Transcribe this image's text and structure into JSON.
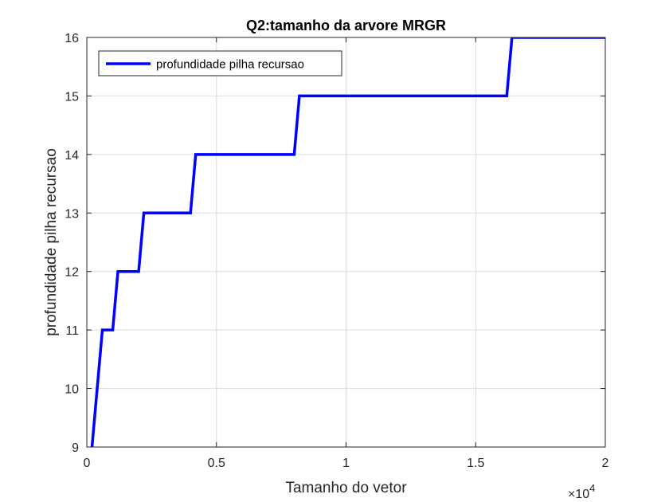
{
  "chart_data": {
    "type": "line",
    "title": "Q2:tamanho da arvore MRGR",
    "xlabel": "Tamanho do vetor",
    "ylabel": "profundidade pilha recursao",
    "x_multiplier_label": "×10",
    "x_multiplier_exponent": "4",
    "xlim": [
      0,
      20000
    ],
    "ylim": [
      9,
      16
    ],
    "x_ticks": [
      0,
      5000,
      10000,
      15000,
      20000
    ],
    "x_tick_labels": [
      "0",
      "0.5",
      "1",
      "1.5",
      "2"
    ],
    "y_ticks": [
      9,
      10,
      11,
      12,
      13,
      14,
      15,
      16
    ],
    "y_tick_labels": [
      "9",
      "10",
      "11",
      "12",
      "13",
      "14",
      "15",
      "16"
    ],
    "grid": true,
    "legend_position": "top-left",
    "series": [
      {
        "name": "profundidade pilha recursao",
        "color": "#0000ff",
        "x": [
          200,
          600,
          1000,
          1200,
          2000,
          2200,
          4000,
          4200,
          8000,
          8200,
          16200,
          16400,
          20000
        ],
        "y": [
          9,
          11,
          11,
          12,
          12,
          13,
          13,
          14,
          14,
          15,
          15,
          16,
          16
        ]
      }
    ]
  }
}
